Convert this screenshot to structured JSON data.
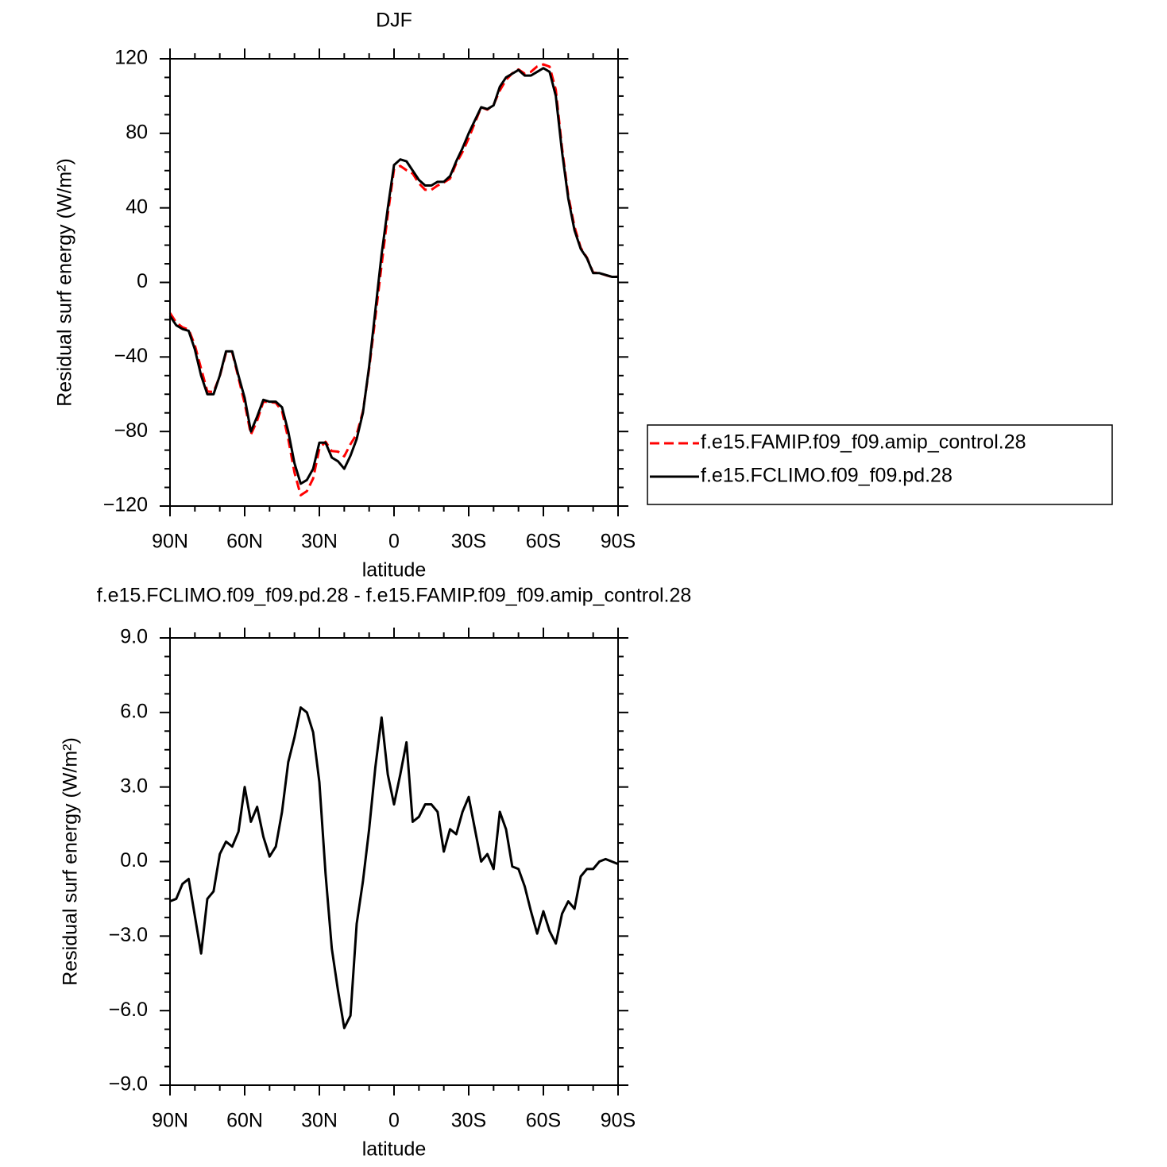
{
  "chart_data": [
    {
      "type": "line",
      "title": "DJF",
      "xlabel": "latitude",
      "ylabel": "Residual surf energy (W/m²)",
      "x": [
        90,
        87.5,
        85,
        82.5,
        80,
        77.5,
        75,
        72.5,
        70,
        67.5,
        65,
        62.5,
        60,
        57.5,
        55,
        52.5,
        50,
        47.5,
        45,
        42.5,
        40,
        37.5,
        35,
        32.5,
        30,
        27.5,
        25,
        22.5,
        20,
        17.5,
        15,
        12.5,
        10,
        7.5,
        5,
        2.5,
        0,
        -2.5,
        -5,
        -7.5,
        -10,
        -12.5,
        -15,
        -17.5,
        -20,
        -22.5,
        -25,
        -27.5,
        -30,
        -32.5,
        -35,
        -37.5,
        -40,
        -42.5,
        -45,
        -47.5,
        -50,
        -52.5,
        -55,
        -57.5,
        -60,
        -62.5,
        -65,
        -67.5,
        -70,
        -72.5,
        -75,
        -77.5,
        -80,
        -82.5,
        -85,
        -87.5,
        -90
      ],
      "xlim": [
        90,
        -90
      ],
      "xticks": [
        {
          "value": 90,
          "label": "90N"
        },
        {
          "value": 60,
          "label": "60N"
        },
        {
          "value": 30,
          "label": "30N"
        },
        0,
        {
          "value": -30,
          "label": "30S"
        },
        {
          "value": -60,
          "label": "60S"
        },
        {
          "value": -90,
          "label": "90S"
        }
      ],
      "ylim": [
        -120,
        120
      ],
      "yticks": [
        {
          "value": -120,
          "label": "−120"
        },
        {
          "value": -80,
          "label": "−80"
        },
        {
          "value": -40,
          "label": "−40"
        },
        0,
        40,
        80,
        120
      ],
      "legend": "right",
      "series": [
        {
          "name": "f.e15.FAMIP.f09_f09.amip_control.28",
          "color": "#ff0000",
          "dash": true,
          "values": [
            -16.4,
            -21.5,
            -24.1,
            -25.3,
            -33.8,
            -46.3,
            -58.5,
            -58.8,
            -50.3,
            -37.8,
            -37.6,
            -51.2,
            -65,
            -81.6,
            -74.2,
            -64,
            -64.2,
            -64.6,
            -69,
            -84,
            -102,
            -114.2,
            -112,
            -105.2,
            -89.2,
            -85.5,
            -90.5,
            -90.8,
            -93.3,
            -86.8,
            -81.5,
            -69.2,
            -46.3,
            -18.8,
            9.2,
            36.5,
            60.7,
            62.5,
            60.2,
            58.4,
            53.2,
            49.7,
            49.7,
            52,
            53.6,
            55.7,
            63.9,
            70,
            77.4,
            85.7,
            94,
            92.7,
            95.3,
            103,
            108.7,
            112.2,
            114.3,
            112,
            113,
            115.9,
            117,
            115.8,
            103.3,
            72.1,
            46.6,
            29.9,
            18.6,
            13.3,
            5.3,
            5,
            3.9,
            3,
            3.1
          ]
        },
        {
          "name": "f.e15.FCLIMO.f09_f09.pd.28",
          "color": "#000000",
          "dash": false,
          "values": [
            -18,
            -23,
            -25,
            -26,
            -36,
            -50,
            -60,
            -60,
            -50,
            -37,
            -37,
            -50,
            -62,
            -80,
            -72,
            -63,
            -64,
            -64,
            -67,
            -80,
            -97,
            -108,
            -106,
            -100,
            -86,
            -86,
            -94,
            -96,
            -100,
            -93,
            -84,
            -70,
            -45,
            -15,
            15,
            40,
            63,
            66,
            65,
            60,
            55,
            52,
            52,
            54,
            54,
            57,
            65,
            72,
            80,
            87,
            94,
            93,
            95,
            105,
            110,
            112,
            114,
            111,
            111,
            113,
            115,
            113,
            100,
            70,
            45,
            28,
            18,
            13,
            5,
            5,
            4,
            3,
            3
          ]
        }
      ]
    },
    {
      "type": "line",
      "title": "f.e15.FCLIMO.f09_f09.pd.28 - f.e15.FAMIP.f09_f09.amip_control.28",
      "xlabel": "latitude",
      "ylabel": "Residual surf energy (W/m²)",
      "x": [
        90,
        87.5,
        85,
        82.5,
        80,
        77.5,
        75,
        72.5,
        70,
        67.5,
        65,
        62.5,
        60,
        57.5,
        55,
        52.5,
        50,
        47.5,
        45,
        42.5,
        40,
        37.5,
        35,
        32.5,
        30,
        27.5,
        25,
        22.5,
        20,
        17.5,
        15,
        12.5,
        10,
        7.5,
        5,
        2.5,
        0,
        -2.5,
        -5,
        -7.5,
        -10,
        -12.5,
        -15,
        -17.5,
        -20,
        -22.5,
        -25,
        -27.5,
        -30,
        -32.5,
        -35,
        -37.5,
        -40,
        -42.5,
        -45,
        -47.5,
        -50,
        -52.5,
        -55,
        -57.5,
        -60,
        -62.5,
        -65,
        -67.5,
        -70,
        -72.5,
        -75,
        -77.5,
        -80,
        -82.5,
        -85,
        -87.5,
        -90
      ],
      "xlim": [
        90,
        -90
      ],
      "xticks": [
        {
          "value": 90,
          "label": "90N"
        },
        {
          "value": 60,
          "label": "60N"
        },
        {
          "value": 30,
          "label": "30N"
        },
        0,
        {
          "value": -30,
          "label": "30S"
        },
        {
          "value": -60,
          "label": "60S"
        },
        {
          "value": -90,
          "label": "90S"
        }
      ],
      "ylim": [
        -9,
        9
      ],
      "yticks": [
        {
          "value": -9,
          "label": "−9.0"
        },
        {
          "value": -6,
          "label": "−6.0"
        },
        {
          "value": -3,
          "label": "−3.0"
        },
        {
          "value": 0,
          "label": "0.0"
        },
        {
          "value": 3,
          "label": "3.0"
        },
        {
          "value": 6,
          "label": "6.0"
        },
        {
          "value": 9,
          "label": "9.0"
        }
      ],
      "series": [
        {
          "color": "#000000",
          "dash": false,
          "values": [
            -1.6,
            -1.5,
            -0.9,
            -0.7,
            -2.2,
            -3.7,
            -1.5,
            -1.2,
            0.3,
            0.8,
            0.6,
            1.2,
            3.0,
            1.6,
            2.2,
            1.0,
            0.2,
            0.6,
            2.0,
            4.0,
            5.0,
            6.2,
            6.0,
            5.2,
            3.2,
            -0.5,
            -3.5,
            -5.2,
            -6.7,
            -6.2,
            -2.5,
            -0.8,
            1.3,
            3.8,
            5.8,
            3.5,
            2.3,
            3.5,
            4.8,
            1.6,
            1.8,
            2.3,
            2.3,
            2.0,
            0.4,
            1.3,
            1.1,
            2.0,
            2.6,
            1.3,
            0,
            0.3,
            -0.3,
            2.0,
            1.3,
            -0.2,
            -0.3,
            -1.0,
            -2.0,
            -2.9,
            -2.0,
            -2.8,
            -3.3,
            -2.1,
            -1.6,
            -1.9,
            -0.6,
            -0.3,
            -0.3,
            0,
            0.1,
            0,
            -0.1
          ]
        }
      ]
    }
  ]
}
